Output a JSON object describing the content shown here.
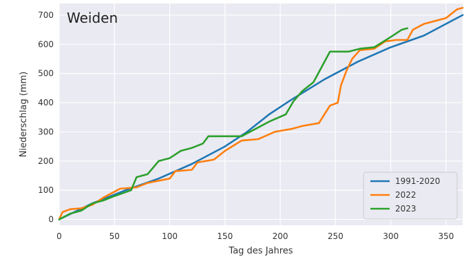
{
  "chart_data": {
    "type": "line",
    "title": "Weiden",
    "xlabel": "Tag des Jahres",
    "ylabel": "Niederschlag (mm)",
    "xlim": [
      0,
      365
    ],
    "ylim": [
      -20,
      740
    ],
    "xticks": [
      0,
      50,
      100,
      150,
      200,
      250,
      300,
      350
    ],
    "yticks": [
      0,
      100,
      200,
      300,
      400,
      500,
      600,
      700
    ],
    "grid": true,
    "legend_position": "bottom-right",
    "series": [
      {
        "name": "1991-2020",
        "color": "#1f77b4",
        "points": [
          [
            0,
            0
          ],
          [
            30,
            55
          ],
          [
            60,
            100
          ],
          [
            90,
            140
          ],
          [
            120,
            190
          ],
          [
            150,
            250
          ],
          [
            170,
            300
          ],
          [
            190,
            360
          ],
          [
            210,
            410
          ],
          [
            240,
            480
          ],
          [
            270,
            540
          ],
          [
            300,
            590
          ],
          [
            330,
            630
          ],
          [
            365,
            700
          ]
        ]
      },
      {
        "name": "2022",
        "color": "#ff7f0e",
        "points": [
          [
            0,
            0
          ],
          [
            3,
            25
          ],
          [
            10,
            35
          ],
          [
            20,
            38
          ],
          [
            30,
            50
          ],
          [
            40,
            75
          ],
          [
            50,
            95
          ],
          [
            55,
            105
          ],
          [
            70,
            110
          ],
          [
            80,
            125
          ],
          [
            100,
            140
          ],
          [
            105,
            165
          ],
          [
            120,
            170
          ],
          [
            125,
            195
          ],
          [
            140,
            205
          ],
          [
            150,
            235
          ],
          [
            165,
            270
          ],
          [
            180,
            275
          ],
          [
            195,
            300
          ],
          [
            210,
            310
          ],
          [
            220,
            320
          ],
          [
            235,
            330
          ],
          [
            240,
            360
          ],
          [
            245,
            390
          ],
          [
            252,
            400
          ],
          [
            255,
            460
          ],
          [
            260,
            510
          ],
          [
            265,
            550
          ],
          [
            272,
            580
          ],
          [
            285,
            585
          ],
          [
            295,
            610
          ],
          [
            305,
            615
          ],
          [
            315,
            615
          ],
          [
            320,
            650
          ],
          [
            330,
            670
          ],
          [
            350,
            690
          ],
          [
            360,
            720
          ],
          [
            365,
            725
          ]
        ]
      },
      {
        "name": "2023",
        "color": "#2ca02c",
        "points": [
          [
            0,
            0
          ],
          [
            10,
            20
          ],
          [
            20,
            30
          ],
          [
            30,
            55
          ],
          [
            40,
            65
          ],
          [
            50,
            80
          ],
          [
            65,
            100
          ],
          [
            70,
            145
          ],
          [
            80,
            155
          ],
          [
            90,
            200
          ],
          [
            100,
            210
          ],
          [
            110,
            235
          ],
          [
            120,
            245
          ],
          [
            130,
            260
          ],
          [
            135,
            285
          ],
          [
            150,
            285
          ],
          [
            165,
            285
          ],
          [
            175,
            305
          ],
          [
            190,
            335
          ],
          [
            205,
            360
          ],
          [
            212,
            405
          ],
          [
            220,
            440
          ],
          [
            230,
            470
          ],
          [
            235,
            505
          ],
          [
            240,
            540
          ],
          [
            245,
            575
          ],
          [
            262,
            575
          ],
          [
            272,
            585
          ],
          [
            285,
            590
          ],
          [
            300,
            625
          ],
          [
            310,
            650
          ],
          [
            315,
            655
          ]
        ]
      }
    ]
  }
}
